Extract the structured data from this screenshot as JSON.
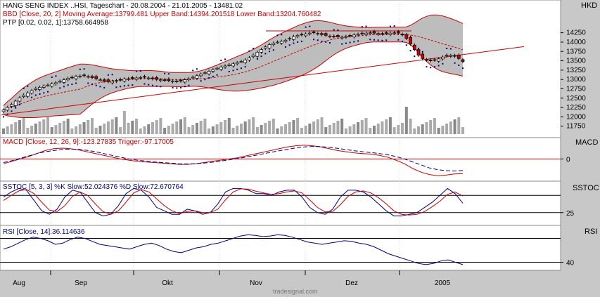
{
  "chart_data": [
    {
      "id": "price",
      "type": "candlestick",
      "title": "HANG SENG INDEX ..HSI, Tageschart - 20.08.2004 - 21.01.2005 - 13481.02",
      "indicator_bbd": "BBD [Close, 20, 2] Moving Average:13799.481 Upper Band:14394.201518 Lower Band:13204.760482",
      "indicator_ptp": "PTP [0.02, 0.02, 1]:13758.664958",
      "unit": "HKD",
      "yticks": [
        14250,
        14000,
        13750,
        13500,
        13250,
        13000,
        12750,
        12500,
        12250,
        12000,
        11750
      ],
      "ylim": [
        11650,
        14450
      ],
      "close_series": [
        12180,
        12250,
        12330,
        12420,
        12510,
        12580,
        12640,
        12700,
        12760,
        12790,
        12820,
        12850,
        12880,
        12910,
        12950,
        12990,
        13030,
        13050,
        13080,
        13090,
        13100,
        13080,
        13050,
        13020,
        12990,
        12960,
        12940,
        12950,
        12970,
        12990,
        13010,
        13020,
        13030,
        13040,
        13050,
        13060,
        13040,
        13020,
        13000,
        12990,
        12980,
        12970,
        12960,
        12950,
        12960,
        12990,
        13020,
        13060,
        13100,
        13140,
        13180,
        13220,
        13260,
        13300,
        13330,
        13360,
        13390,
        13420,
        13450,
        13480,
        13520,
        13580,
        13650,
        13730,
        13800,
        13870,
        13930,
        13970,
        14000,
        14020,
        14050,
        14100,
        14150,
        14180,
        14200,
        14220,
        14240,
        14250,
        14230,
        14200,
        14180,
        14160,
        14150,
        14140,
        14130,
        14150,
        14170,
        14190,
        14210,
        14230,
        14240,
        14250,
        14240,
        14230,
        14220,
        14230,
        14240,
        14250,
        14240,
        14200,
        14100,
        13950,
        13800,
        13650,
        13560,
        13520,
        13500,
        13520,
        13550,
        13600,
        13650,
        13640,
        13620,
        13560,
        13481
      ],
      "bollinger_fill": "#bdbdbd",
      "band_color": "#cc0000",
      "trendlines": 2,
      "volume_yticks": []
    },
    {
      "id": "macd",
      "type": "line",
      "name": "MACD",
      "label": "MACD [Close, 12, 26, 9]:-123.27835 Trigger:-97.17005",
      "ytick": "0",
      "series": [
        {
          "name": "MACD",
          "color": "#cc0000",
          "values": [
            -40,
            -20,
            0,
            20,
            45,
            70,
            85,
            90,
            85,
            75,
            60,
            45,
            30,
            15,
            0,
            -10,
            -20,
            -25,
            -30,
            -35,
            -40,
            -45,
            -45,
            -40,
            -30,
            -20,
            -10,
            0,
            10,
            25,
            40,
            55,
            70,
            85,
            100,
            110,
            115,
            110,
            100,
            85,
            70,
            60,
            50,
            45,
            40,
            30,
            15,
            -10,
            -40,
            -80,
            -110,
            -130,
            -140,
            -135,
            -125,
            -123
          ]
        },
        {
          "name": "Trigger",
          "color": "#000080",
          "dashed": true,
          "values": [
            -30,
            -15,
            5,
            25,
            45,
            60,
            70,
            78,
            82,
            80,
            72,
            60,
            45,
            30,
            15,
            0,
            -10,
            -18,
            -25,
            -30,
            -35,
            -40,
            -42,
            -40,
            -35,
            -27,
            -18,
            -8,
            3,
            15,
            28,
            42,
            55,
            68,
            80,
            92,
            100,
            104,
            103,
            97,
            88,
            78,
            68,
            60,
            53,
            45,
            35,
            20,
            0,
            -25,
            -50,
            -75,
            -90,
            -98,
            -100,
            -97
          ]
        }
      ]
    },
    {
      "id": "sstoc",
      "type": "line",
      "name": "SSTOC",
      "label": "SSTOC [5, 3, 3] %K Slow:52.024376 %D Slow:72.670764",
      "ytick": "25",
      "ylim": [
        0,
        100
      ],
      "series": [
        {
          "name": "%K Slow",
          "color": "#000080",
          "values": [
            70,
            85,
            95,
            90,
            60,
            30,
            20,
            35,
            70,
            90,
            85,
            55,
            25,
            15,
            20,
            45,
            80,
            95,
            90,
            70,
            40,
            30,
            20,
            20,
            35,
            30,
            20,
            25,
            50,
            85,
            95,
            95,
            90,
            80,
            80,
            75,
            85,
            90,
            90,
            70,
            40,
            25,
            20,
            35,
            70,
            90,
            90,
            85,
            70,
            50,
            30,
            15,
            15,
            20,
            25,
            40,
            55,
            75,
            95,
            80,
            52
          ]
        },
        {
          "name": "%D Slow",
          "color": "#cc0000",
          "values": [
            60,
            75,
            88,
            92,
            80,
            55,
            32,
            28,
            45,
            72,
            85,
            75,
            50,
            28,
            20,
            30,
            55,
            82,
            92,
            85,
            65,
            45,
            30,
            22,
            28,
            30,
            25,
            25,
            35,
            62,
            85,
            94,
            93,
            87,
            82,
            78,
            80,
            85,
            88,
            82,
            62,
            40,
            27,
            28,
            48,
            72,
            85,
            88,
            82,
            68,
            50,
            30,
            20,
            18,
            20,
            28,
            42,
            58,
            78,
            85,
            73
          ]
        }
      ]
    },
    {
      "id": "rsi",
      "type": "line",
      "name": "RSI",
      "label": "RSI [Close, 14]:36.114636",
      "ytick": "40",
      "ylim": [
        30,
        90
      ],
      "series": [
        {
          "name": "RSI",
          "color": "#000080",
          "values": [
            62,
            66,
            72,
            78,
            82,
            80,
            76,
            70,
            72,
            78,
            82,
            80,
            75,
            70,
            68,
            66,
            64,
            62,
            66,
            70,
            72,
            68,
            62,
            58,
            56,
            60,
            64,
            66,
            70,
            72,
            76,
            80,
            84,
            86,
            85,
            83,
            84,
            86,
            85,
            82,
            78,
            74,
            72,
            70,
            72,
            74,
            76,
            75,
            72,
            70,
            66,
            60,
            54,
            50,
            46,
            42,
            38,
            36,
            38,
            42,
            44,
            40,
            36
          ]
        }
      ]
    }
  ],
  "xaxis": {
    "labels": [
      "Aug",
      "Sep",
      "Okt",
      "Nov",
      "Dez",
      "2005"
    ]
  },
  "footer": {
    "text": "tradesignal.com"
  }
}
